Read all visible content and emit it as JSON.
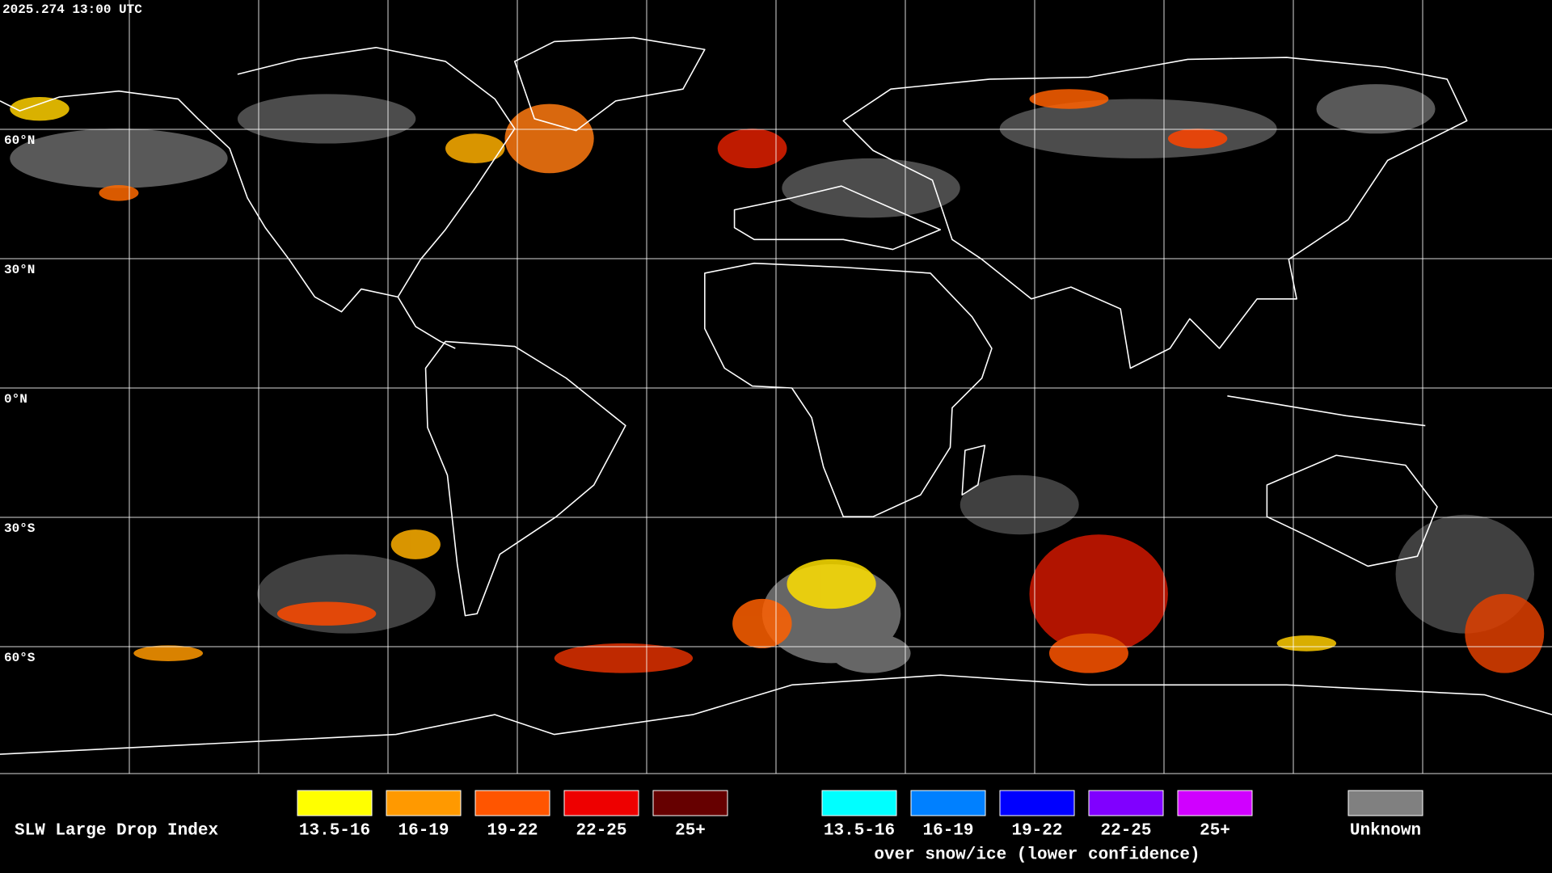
{
  "header": {
    "timestamp": "2025.274 13:00 UTC"
  },
  "map": {
    "latitude_labels": [
      "60°N",
      "30°N",
      "0°N",
      "30°S",
      "60°S"
    ]
  },
  "legend": {
    "title": "SLW Large Drop Index",
    "classes": [
      {
        "label": "13.5-16",
        "color": "#ffff00"
      },
      {
        "label": "16-19",
        "color": "#ff9900"
      },
      {
        "label": "19-22",
        "color": "#ff5500"
      },
      {
        "label": "22-25",
        "color": "#ee0000"
      },
      {
        "label": "25+",
        "color": "#660000"
      }
    ],
    "snow_ice_classes": [
      {
        "label": "13.5-16",
        "color": "#00ffff"
      },
      {
        "label": "16-19",
        "color": "#0080ff"
      },
      {
        "label": "19-22",
        "color": "#0000ff"
      },
      {
        "label": "22-25",
        "color": "#8000ff"
      },
      {
        "label": "25+",
        "color": "#d000ff"
      }
    ],
    "snow_ice_caption": "over snow/ice (lower confidence)",
    "unknown": {
      "label": "Unknown",
      "color": "#808080"
    }
  }
}
